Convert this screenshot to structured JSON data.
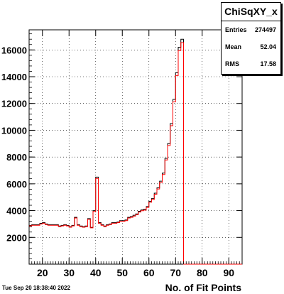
{
  "stats_box": {
    "title": "ChiSqXY_x",
    "entries_label": "Entries",
    "entries_value": "274497",
    "mean_label": "Mean",
    "mean_value": "52.04",
    "rms_label": "RMS",
    "rms_value": "17.58"
  },
  "timestamp": "Tue Sep 20 18:38:40 2022",
  "chart_data": {
    "type": "histogram",
    "title": "ChiSqXY_x",
    "xlabel": "No. of Fit Points",
    "ylabel": "",
    "xlim": [
      15,
      95
    ],
    "ylim": [
      0,
      17500
    ],
    "xticks": [
      20,
      30,
      40,
      50,
      60,
      70,
      80,
      90
    ],
    "yticks": [
      2000,
      4000,
      6000,
      8000,
      10000,
      12000,
      14000,
      16000
    ],
    "ytick_labels": [
      "2000",
      "4000",
      "6000",
      "8000",
      "10000",
      "12000",
      "14000",
      "16000"
    ],
    "grid": true,
    "bin_width": 1,
    "bins_low_edge": [
      15,
      16,
      17,
      18,
      19,
      20,
      21,
      22,
      23,
      24,
      25,
      26,
      27,
      28,
      29,
      30,
      31,
      32,
      33,
      34,
      35,
      36,
      37,
      38,
      39,
      40,
      41,
      42,
      43,
      44,
      45,
      46,
      47,
      48,
      49,
      50,
      51,
      52,
      53,
      54,
      55,
      56,
      57,
      58,
      59,
      60,
      61,
      62,
      63,
      64,
      65,
      66,
      67,
      68,
      69,
      70,
      71,
      72
    ],
    "values": [
      2900,
      2950,
      2950,
      2950,
      3050,
      3100,
      3000,
      2950,
      2950,
      2950,
      2950,
      2850,
      2900,
      2950,
      2900,
      2800,
      2900,
      3500,
      2950,
      2850,
      2800,
      2850,
      3400,
      2750,
      4000,
      6500,
      3100,
      2950,
      2850,
      2950,
      3000,
      3100,
      3100,
      3150,
      3250,
      3250,
      3300,
      3500,
      3550,
      3650,
      3750,
      3950,
      4050,
      4100,
      4300,
      4700,
      4900,
      5300,
      5700,
      6200,
      6800,
      7900,
      9000,
      10500,
      12300,
      14300,
      16200,
      16800
    ],
    "series_colors": {
      "line": "#000000",
      "fit": "#ff0000"
    }
  }
}
